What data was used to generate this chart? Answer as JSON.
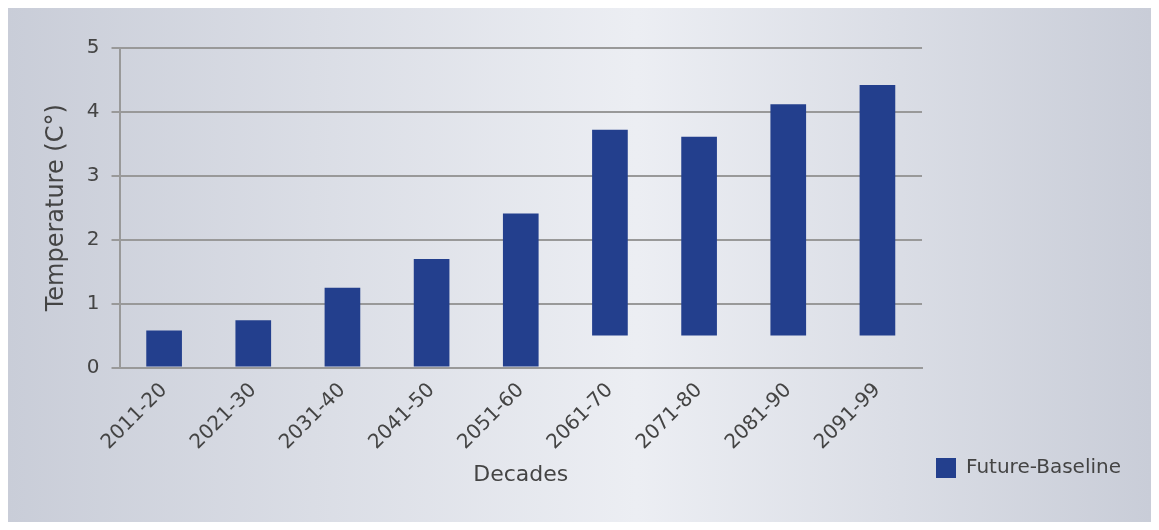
{
  "chart_data": {
    "type": "bar",
    "xlabel": "Decades",
    "ylabel": "Temperature (C°)",
    "categories": [
      "2011-20",
      "2021-30",
      "2031-40",
      "2041-50",
      "2051-60",
      "2061-70",
      "2071-80",
      "2081-90",
      "2091-99"
    ],
    "series": [
      {
        "name": "Future-Baseline",
        "color": "#233f8d",
        "values": [
          0.58,
          0.74,
          1.25,
          1.7,
          2.41,
          3.22,
          3.11,
          3.62,
          3.92
        ],
        "base": [
          0,
          0,
          0,
          0,
          0,
          0.5,
          0.5,
          0.5,
          0.5
        ]
      }
    ],
    "ylim": [
      0,
      5
    ],
    "yticks": [
      0,
      1,
      2,
      3,
      4,
      5
    ],
    "grid": "y",
    "legend": "right"
  }
}
